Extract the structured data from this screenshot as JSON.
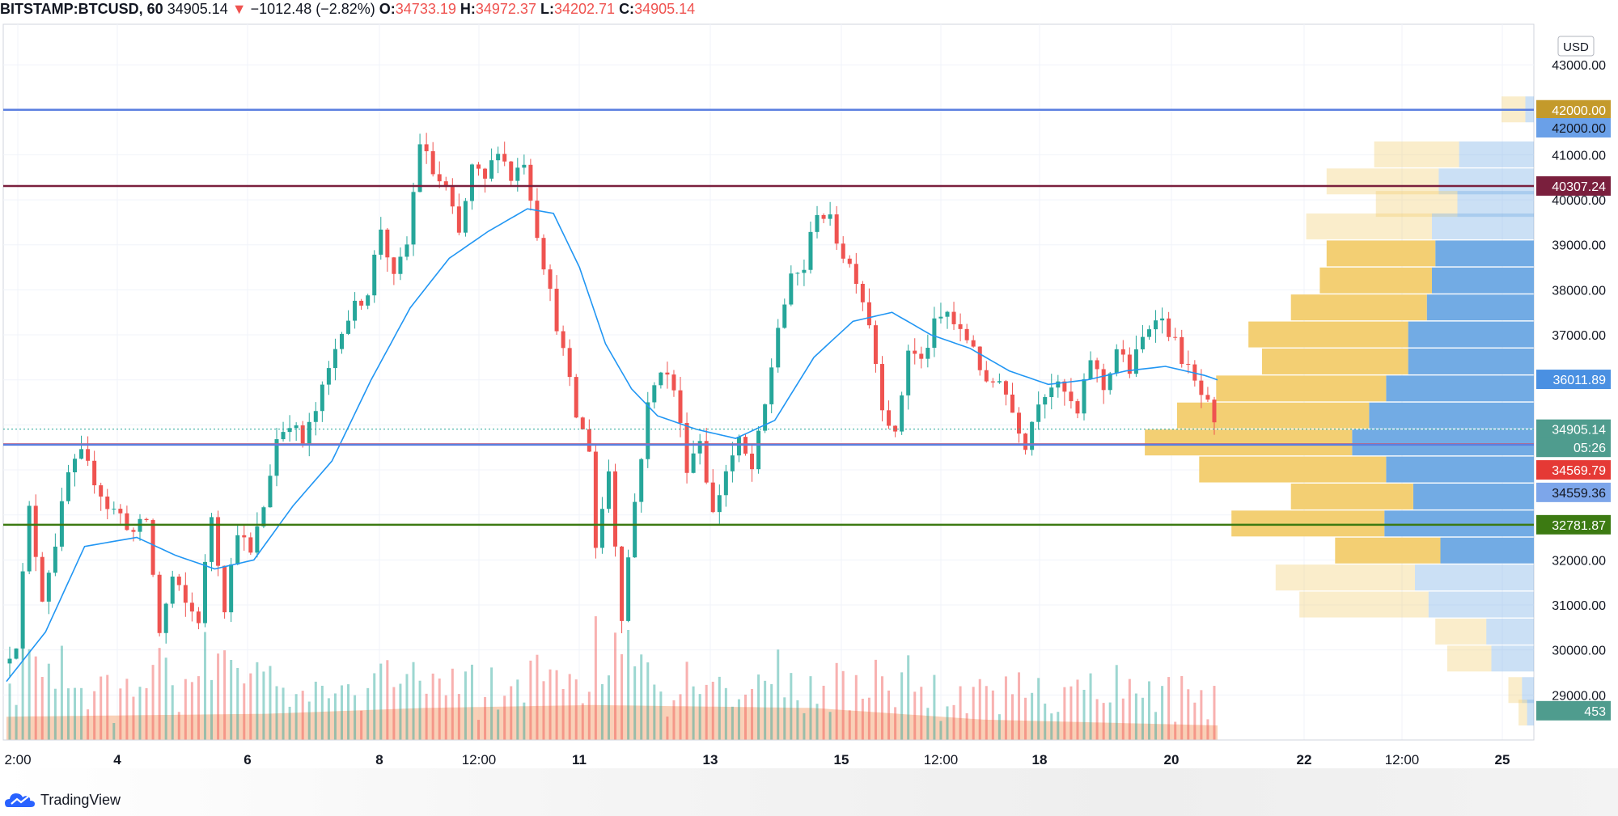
{
  "header": {
    "symbol": "BITSTAMP:BTCUSD, 60",
    "last": "34905.14",
    "change": "−1012.48 (−2.82%)",
    "o_label": "O:",
    "o": "34733.19",
    "h_label": "H:",
    "h": "34972.37",
    "l_label": "L:",
    "l": "34202.71",
    "c_label": "C:",
    "c": "34905.14"
  },
  "brand": "TradingView",
  "currency": "USD",
  "colors": {
    "up": "#26a69a",
    "down": "#ef5350",
    "ma": "#2196f3",
    "vol_area": "#f4a97c",
    "profile_up": "#f2cc6b",
    "profile_down": "#6aa7e3",
    "line_blue": "#5b7fe0",
    "line_maroon": "#7a1f3d",
    "line_green": "#3c7a12"
  },
  "chart_data": {
    "type": "candlestick",
    "x_ticks": [
      "2:00",
      "4",
      "6",
      "8",
      "12:00",
      "11",
      "13",
      "15",
      "12:00",
      "18",
      "20",
      "22",
      "12:00",
      "25"
    ],
    "x_ticks_bold": [
      "4",
      "6",
      "8",
      "11",
      "13",
      "15",
      "18",
      "20",
      "22",
      "25"
    ],
    "y_ticks": [
      "43000.00",
      "41000.00",
      "40000.00",
      "39000.00",
      "38000.00",
      "37000.00",
      "32000.00",
      "31000.00",
      "30000.00",
      "29000.00"
    ],
    "ylim": [
      28000,
      43900
    ],
    "price_path": [
      [
        0,
        29700
      ],
      [
        2,
        30200
      ],
      [
        4,
        33100
      ],
      [
        6,
        31200
      ],
      [
        8,
        32400
      ],
      [
        10,
        33900
      ],
      [
        12,
        34300
      ],
      [
        14,
        33800
      ],
      [
        16,
        33200
      ],
      [
        18,
        33000
      ],
      [
        20,
        32600
      ],
      [
        22,
        32900
      ],
      [
        24,
        30400
      ],
      [
        26,
        31600
      ],
      [
        28,
        31000
      ],
      [
        30,
        30700
      ],
      [
        32,
        33000
      ],
      [
        34,
        31000
      ],
      [
        36,
        32700
      ],
      [
        38,
        32100
      ],
      [
        40,
        33200
      ],
      [
        42,
        34700
      ],
      [
        44,
        35100
      ],
      [
        46,
        34600
      ],
      [
        48,
        35300
      ],
      [
        50,
        36200
      ],
      [
        52,
        37200
      ],
      [
        54,
        37600
      ],
      [
        56,
        38000
      ],
      [
        58,
        39400
      ],
      [
        60,
        38200
      ],
      [
        62,
        39000
      ],
      [
        64,
        41300
      ],
      [
        66,
        40600
      ],
      [
        68,
        40200
      ],
      [
        70,
        39200
      ],
      [
        72,
        40700
      ],
      [
        74,
        40400
      ],
      [
        76,
        41200
      ],
      [
        78,
        40500
      ],
      [
        80,
        40900
      ],
      [
        82,
        39300
      ],
      [
        84,
        37900
      ],
      [
        86,
        36600
      ],
      [
        88,
        35200
      ],
      [
        90,
        34500
      ],
      [
        91,
        32300
      ],
      [
        93,
        34000
      ],
      [
        95,
        30800
      ],
      [
        97,
        33300
      ],
      [
        99,
        35400
      ],
      [
        101,
        36300
      ],
      [
        103,
        35800
      ],
      [
        105,
        34100
      ],
      [
        107,
        34700
      ],
      [
        109,
        33000
      ],
      [
        111,
        34000
      ],
      [
        113,
        34600
      ],
      [
        115,
        34000
      ],
      [
        117,
        35400
      ],
      [
        119,
        37200
      ],
      [
        121,
        38200
      ],
      [
        123,
        38500
      ],
      [
        125,
        39800
      ],
      [
        127,
        39500
      ],
      [
        129,
        38800
      ],
      [
        131,
        38300
      ],
      [
        133,
        37300
      ],
      [
        135,
        35500
      ],
      [
        137,
        34700
      ],
      [
        139,
        36700
      ],
      [
        141,
        36400
      ],
      [
        143,
        37200
      ],
      [
        145,
        37500
      ],
      [
        147,
        37000
      ],
      [
        149,
        36800
      ],
      [
        151,
        35800
      ],
      [
        153,
        36100
      ],
      [
        155,
        35300
      ],
      [
        157,
        34600
      ],
      [
        159,
        35600
      ],
      [
        161,
        35900
      ],
      [
        163,
        35700
      ],
      [
        165,
        35200
      ],
      [
        167,
        36500
      ],
      [
        169,
        35800
      ],
      [
        171,
        36700
      ],
      [
        173,
        36200
      ],
      [
        175,
        36900
      ],
      [
        177,
        37500
      ],
      [
        179,
        37100
      ],
      [
        181,
        36500
      ],
      [
        183,
        35900
      ],
      [
        185,
        35400
      ],
      [
        186,
        34905
      ]
    ],
    "ma_path": [
      [
        0,
        29300
      ],
      [
        6,
        30400
      ],
      [
        12,
        32300
      ],
      [
        20,
        32500
      ],
      [
        26,
        32100
      ],
      [
        32,
        31800
      ],
      [
        38,
        32000
      ],
      [
        44,
        33200
      ],
      [
        50,
        34200
      ],
      [
        56,
        36000
      ],
      [
        62,
        37600
      ],
      [
        68,
        38700
      ],
      [
        74,
        39300
      ],
      [
        80,
        39800
      ],
      [
        84,
        39700
      ],
      [
        88,
        38500
      ],
      [
        92,
        36800
      ],
      [
        96,
        35800
      ],
      [
        100,
        35200
      ],
      [
        106,
        34900
      ],
      [
        112,
        34700
      ],
      [
        118,
        35100
      ],
      [
        124,
        36500
      ],
      [
        130,
        37300
      ],
      [
        136,
        37500
      ],
      [
        142,
        37000
      ],
      [
        148,
        36700
      ],
      [
        154,
        36200
      ],
      [
        160,
        35900
      ],
      [
        166,
        36000
      ],
      [
        172,
        36200
      ],
      [
        178,
        36300
      ],
      [
        184,
        36100
      ],
      [
        186,
        36000
      ]
    ],
    "volume_area": [
      [
        0,
        0.16
      ],
      [
        40,
        0.18
      ],
      [
        64,
        0.22
      ],
      [
        90,
        0.24
      ],
      [
        124,
        0.22
      ],
      [
        150,
        0.14
      ],
      [
        186,
        0.1
      ]
    ],
    "horizontal_levels": [
      {
        "price": 42000,
        "color": "#5b7fe0"
      },
      {
        "price": 40307.24,
        "color": "#7a1f3d"
      },
      {
        "price": 34569.79,
        "color": "#ef5350"
      },
      {
        "price": 34559.36,
        "color": "#5b7fe0"
      },
      {
        "price": 32781.87,
        "color": "#3c7a12"
      },
      {
        "price": 34905.14,
        "color": "#26a69a"
      }
    ],
    "volume_profile": [
      {
        "price": 42000,
        "up": 0.14,
        "down": 0.05
      },
      {
        "price": 41000,
        "up": 0.5,
        "down": 0.44
      },
      {
        "price": 40400,
        "up": 0.66,
        "down": 0.56
      },
      {
        "price": 39900,
        "up": 0.48,
        "down": 0.45
      },
      {
        "price": 39400,
        "up": 0.74,
        "down": 0.6
      },
      {
        "price": 38800,
        "up": 0.64,
        "down": 0.58
      },
      {
        "price": 38200,
        "up": 0.66,
        "down": 0.6
      },
      {
        "price": 37600,
        "up": 0.8,
        "down": 0.63
      },
      {
        "price": 37000,
        "up": 0.94,
        "down": 0.74
      },
      {
        "price": 36400,
        "up": 0.86,
        "down": 0.74
      },
      {
        "price": 35800,
        "up": 1.0,
        "down": 0.87
      },
      {
        "price": 35200,
        "up": 1.13,
        "down": 0.97
      },
      {
        "price": 34600,
        "up": 1.22,
        "down": 1.07
      },
      {
        "price": 34000,
        "up": 1.1,
        "down": 0.87
      },
      {
        "price": 33400,
        "up": 0.72,
        "down": 0.71
      },
      {
        "price": 32800,
        "up": 0.9,
        "down": 0.88
      },
      {
        "price": 32200,
        "up": 0.62,
        "down": 0.55
      },
      {
        "price": 31600,
        "up": 0.82,
        "down": 0.7
      },
      {
        "price": 31000,
        "up": 0.76,
        "down": 0.62
      },
      {
        "price": 30400,
        "up": 0.3,
        "down": 0.28
      },
      {
        "price": 29800,
        "up": 0.26,
        "down": 0.25
      },
      {
        "price": 29100,
        "up": 0.08,
        "down": 0.07
      },
      {
        "price": 28600,
        "up": 0.05,
        "down": 0.04
      }
    ]
  },
  "axis_labels": [
    {
      "price": 42000,
      "text": "42000.00",
      "bg": "#c49a2b",
      "fg": "#ffffff"
    },
    {
      "price": 41600,
      "text": "42000.00",
      "bg": "#6aa0e8",
      "fg": "#131722"
    },
    {
      "price": 40307.24,
      "text": "40307.24",
      "bg": "#7a1f3d",
      "fg": "#ffffff"
    },
    {
      "price": 36011.89,
      "text": "36011.89",
      "bg": "#4a90e2",
      "fg": "#ffffff"
    },
    {
      "price": 34905.14,
      "text": "34905.14",
      "bg": "#4f9c8e",
      "fg": "#ffffff"
    },
    {
      "price": 34500,
      "text": "05:26",
      "bg": "#4f9c8e",
      "fg": "#ffffff"
    },
    {
      "price": 34000,
      "text": "34569.79",
      "bg": "#e53935",
      "fg": "#ffffff"
    },
    {
      "price": 33500,
      "text": "34559.36",
      "bg": "#7da6ea",
      "fg": "#131722"
    },
    {
      "price": 32781.87,
      "text": "32781.87",
      "bg": "#3c7a12",
      "fg": "#ffffff"
    },
    {
      "price": 28650,
      "text": "453",
      "bg": "#4f9c8e",
      "fg": "#ffffff"
    }
  ]
}
